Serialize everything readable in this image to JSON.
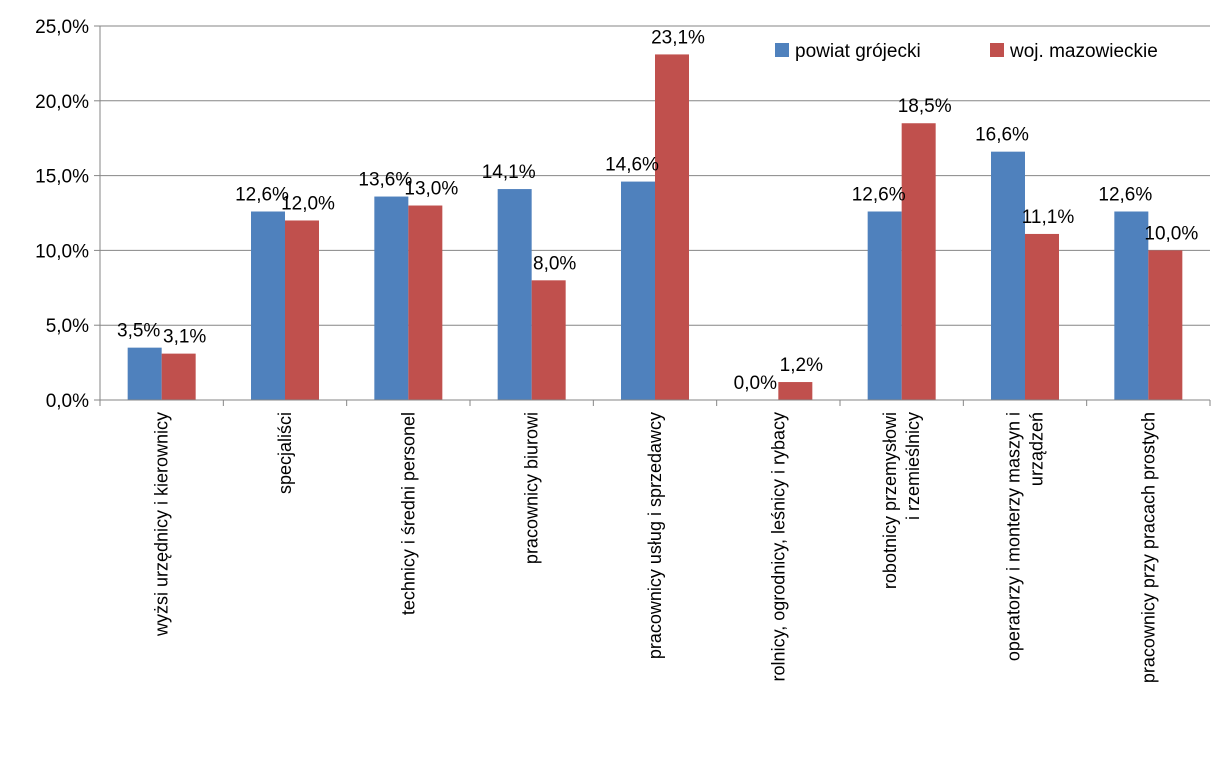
{
  "chart_data": {
    "type": "bar",
    "title": "",
    "xlabel": "",
    "ylabel": "",
    "ylim": [
      0,
      25
    ],
    "yticks": [
      "0,0%",
      "5,0%",
      "10,0%",
      "15,0%",
      "20,0%",
      "25,0%"
    ],
    "grid": true,
    "legend": "top-right",
    "categories": [
      [
        "wyżsi urzędnicy i kierownicy"
      ],
      [
        "specjaliści"
      ],
      [
        "technicy i średni personel"
      ],
      [
        "pracownicy biurowi"
      ],
      [
        "pracownicy usług i sprzedawcy"
      ],
      [
        "rolnicy, ogrodnicy, leśnicy i rybacy"
      ],
      [
        "robotnicy przemysłowi",
        "i rzemieślnicy"
      ],
      [
        "operatorzy i monterzy maszyn i",
        "urządzeń"
      ],
      [
        "pracownicy przy pracach prostych"
      ]
    ],
    "series": [
      {
        "name": "powiat grójecki",
        "color": "#4F81BD",
        "values": [
          3.5,
          12.6,
          13.6,
          14.1,
          14.6,
          0.0,
          12.6,
          16.6,
          12.6
        ],
        "labels": [
          "3,5%",
          "12,6%",
          "13,6%",
          "14,1%",
          "14,6%",
          "0,0%",
          "12,6%",
          "16,6%",
          "12,6%"
        ]
      },
      {
        "name": "woj. mazowieckie",
        "color": "#C0504D",
        "values": [
          3.1,
          12.0,
          13.0,
          8.0,
          23.1,
          1.2,
          18.5,
          11.1,
          10.0
        ],
        "labels": [
          "3,1%",
          "12,0%",
          "13,0%",
          "8,0%",
          "23,1%",
          "1,2%",
          "18,5%",
          "11,1%",
          "10,0%"
        ]
      }
    ]
  }
}
